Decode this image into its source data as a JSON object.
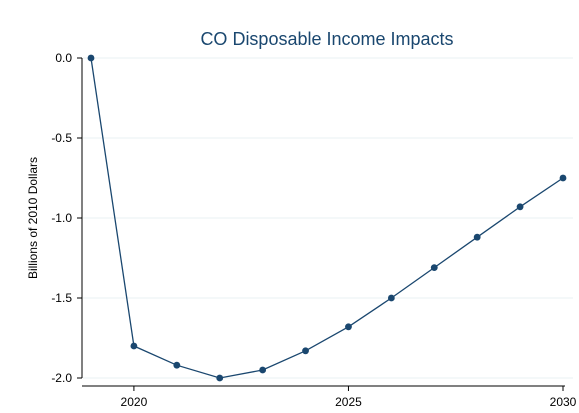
{
  "chart_data": {
    "type": "line",
    "title": "CO Disposable Income Impacts",
    "xlabel": "",
    "ylabel": "Billions of 2010 Dollars",
    "x": [
      2019,
      2020,
      2021,
      2022,
      2023,
      2024,
      2025,
      2026,
      2027,
      2028,
      2029,
      2030
    ],
    "series": [
      {
        "values": [
          0.0,
          -1.8,
          -1.92,
          -2.0,
          -1.95,
          -1.83,
          -1.68,
          -1.5,
          -1.31,
          -1.12,
          -0.93,
          -0.75
        ]
      }
    ],
    "xlim": [
      2019,
      2030
    ],
    "ylim": [
      -2.0,
      0.0
    ],
    "x_ticks": [
      2020,
      2025,
      2030
    ],
    "x_tick_labels": [
      "2020",
      "2025",
      "2030"
    ],
    "y_ticks": [
      0.0,
      -0.5,
      -1.0,
      -1.5,
      -2.0
    ],
    "y_tick_labels": [
      "0.0",
      "-0.5",
      "-1.0",
      "-1.5",
      "-2.0"
    ],
    "grid": true,
    "colors": {
      "series": "#1a476f",
      "title": "#1a476f",
      "grid": "#eaf2f3",
      "background": "#ffffff"
    }
  }
}
